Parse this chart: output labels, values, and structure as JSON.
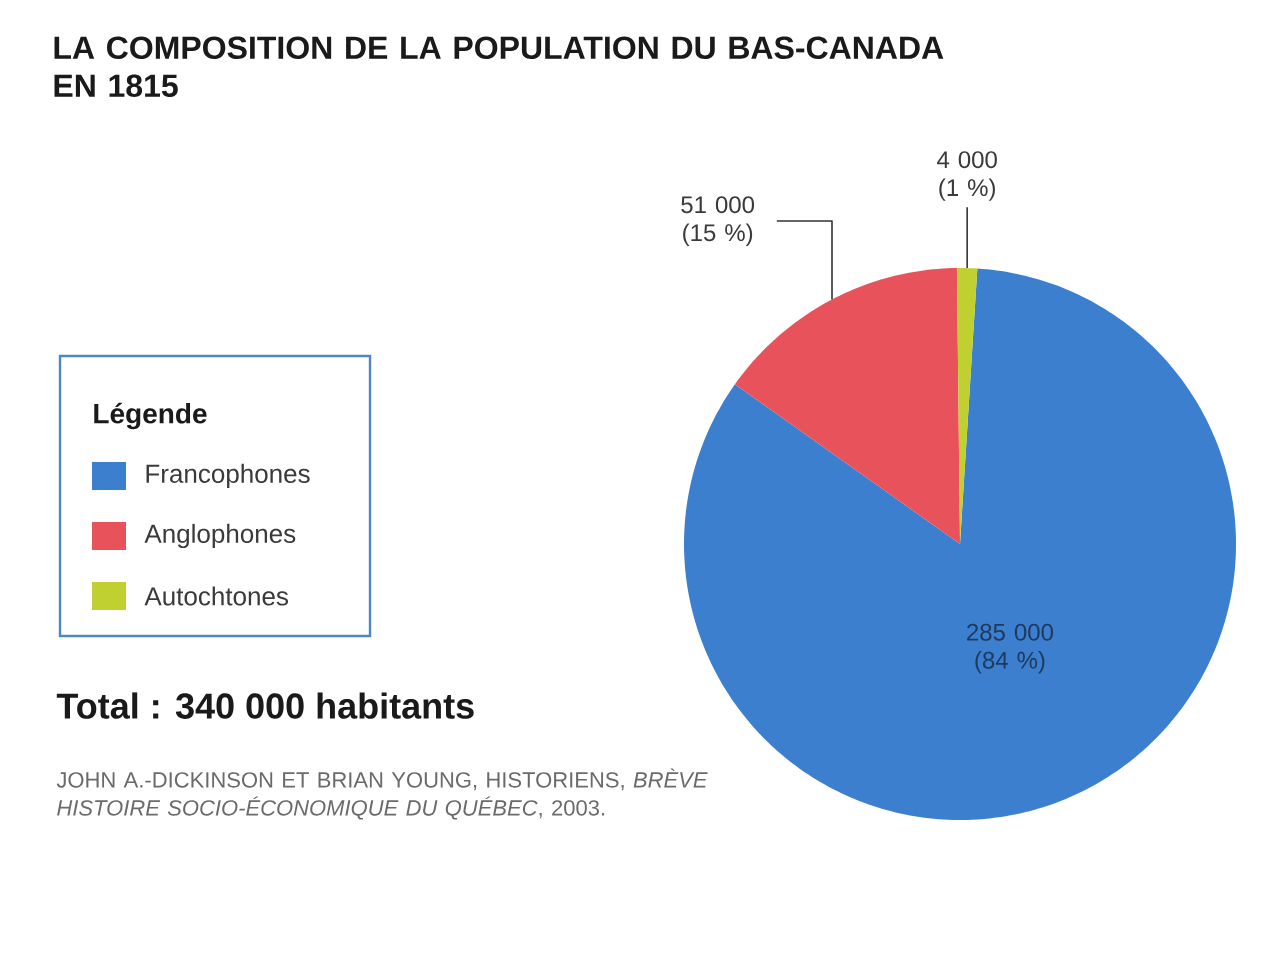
{
  "chart_data": {
    "type": "pie",
    "title": "LA COMPOSITION DE LA POPULATION DU BAS-CANADA EN 1815",
    "legend_title": "Légende",
    "categories": [
      "Francophones",
      "Anglophones",
      "Autochtones"
    ],
    "values": [
      285000,
      51000,
      4000
    ],
    "colors": [
      "#3d7fcf",
      "#e8525b",
      "#bfd030"
    ],
    "value_labels": [
      "285 000 (84 %)",
      "51 000 (15 %)",
      "4 000 (1 %)"
    ],
    "legend": "left",
    "annotations": [
      "Total : 340 000 habitants",
      "JOHN A.-DICKINSON ET BRIAN YOUNG, HISTORIENS, *BRÈVE HISTOIRE SOCIO-ÉCONOMIQUE DU QUÉBEC*, 2003."
    ]
  }
}
